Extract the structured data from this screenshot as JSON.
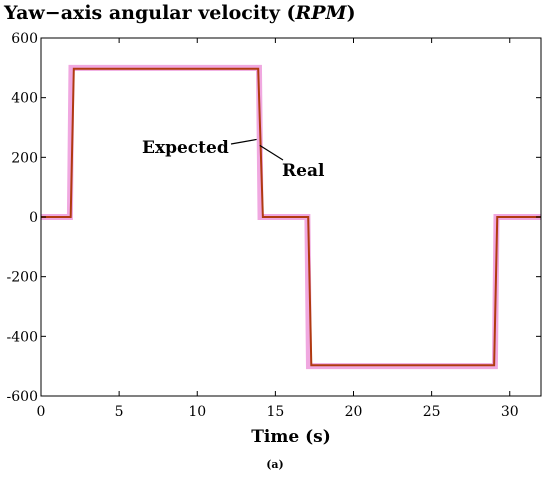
{
  "chart_data": {
    "type": "line",
    "title_prefix": "Yaw",
    "title_dash": "−",
    "title_main": "axis angular velocity (",
    "title_unit": "RPM",
    "title_suffix": ")",
    "xlabel": "Time (s)",
    "ylabel": "",
    "xlim": [
      0,
      32
    ],
    "ylim": [
      -600,
      600
    ],
    "xticks": [
      0,
      5,
      10,
      15,
      20,
      25,
      30
    ],
    "yticks": [
      600,
      400,
      200,
      0,
      -200,
      -400,
      -600
    ],
    "grid": false,
    "series": [
      {
        "name": "Expected",
        "color": "#f0a8e0",
        "x": [
          0,
          1.85,
          1.95,
          13.95,
          14.05,
          17.05,
          17.15,
          29.05,
          29.15,
          32
        ],
        "y": [
          0,
          0,
          500,
          500,
          0,
          0,
          -500,
          -500,
          0,
          0
        ]
      },
      {
        "name": "Real",
        "color": "#b03a10",
        "x": [
          0,
          1.9,
          2.1,
          13.9,
          14.2,
          17.1,
          17.3,
          29.0,
          29.2,
          32
        ],
        "y": [
          0,
          0,
          497,
          497,
          0,
          0,
          -497,
          -497,
          0,
          0
        ]
      }
    ],
    "annotations": [
      {
        "text": "Expected",
        "series": "Expected",
        "point": [
          13.8,
          260
        ]
      },
      {
        "text": "Real",
        "series": "Real",
        "point": [
          14.0,
          240
        ]
      }
    ]
  },
  "caption": "(a)"
}
